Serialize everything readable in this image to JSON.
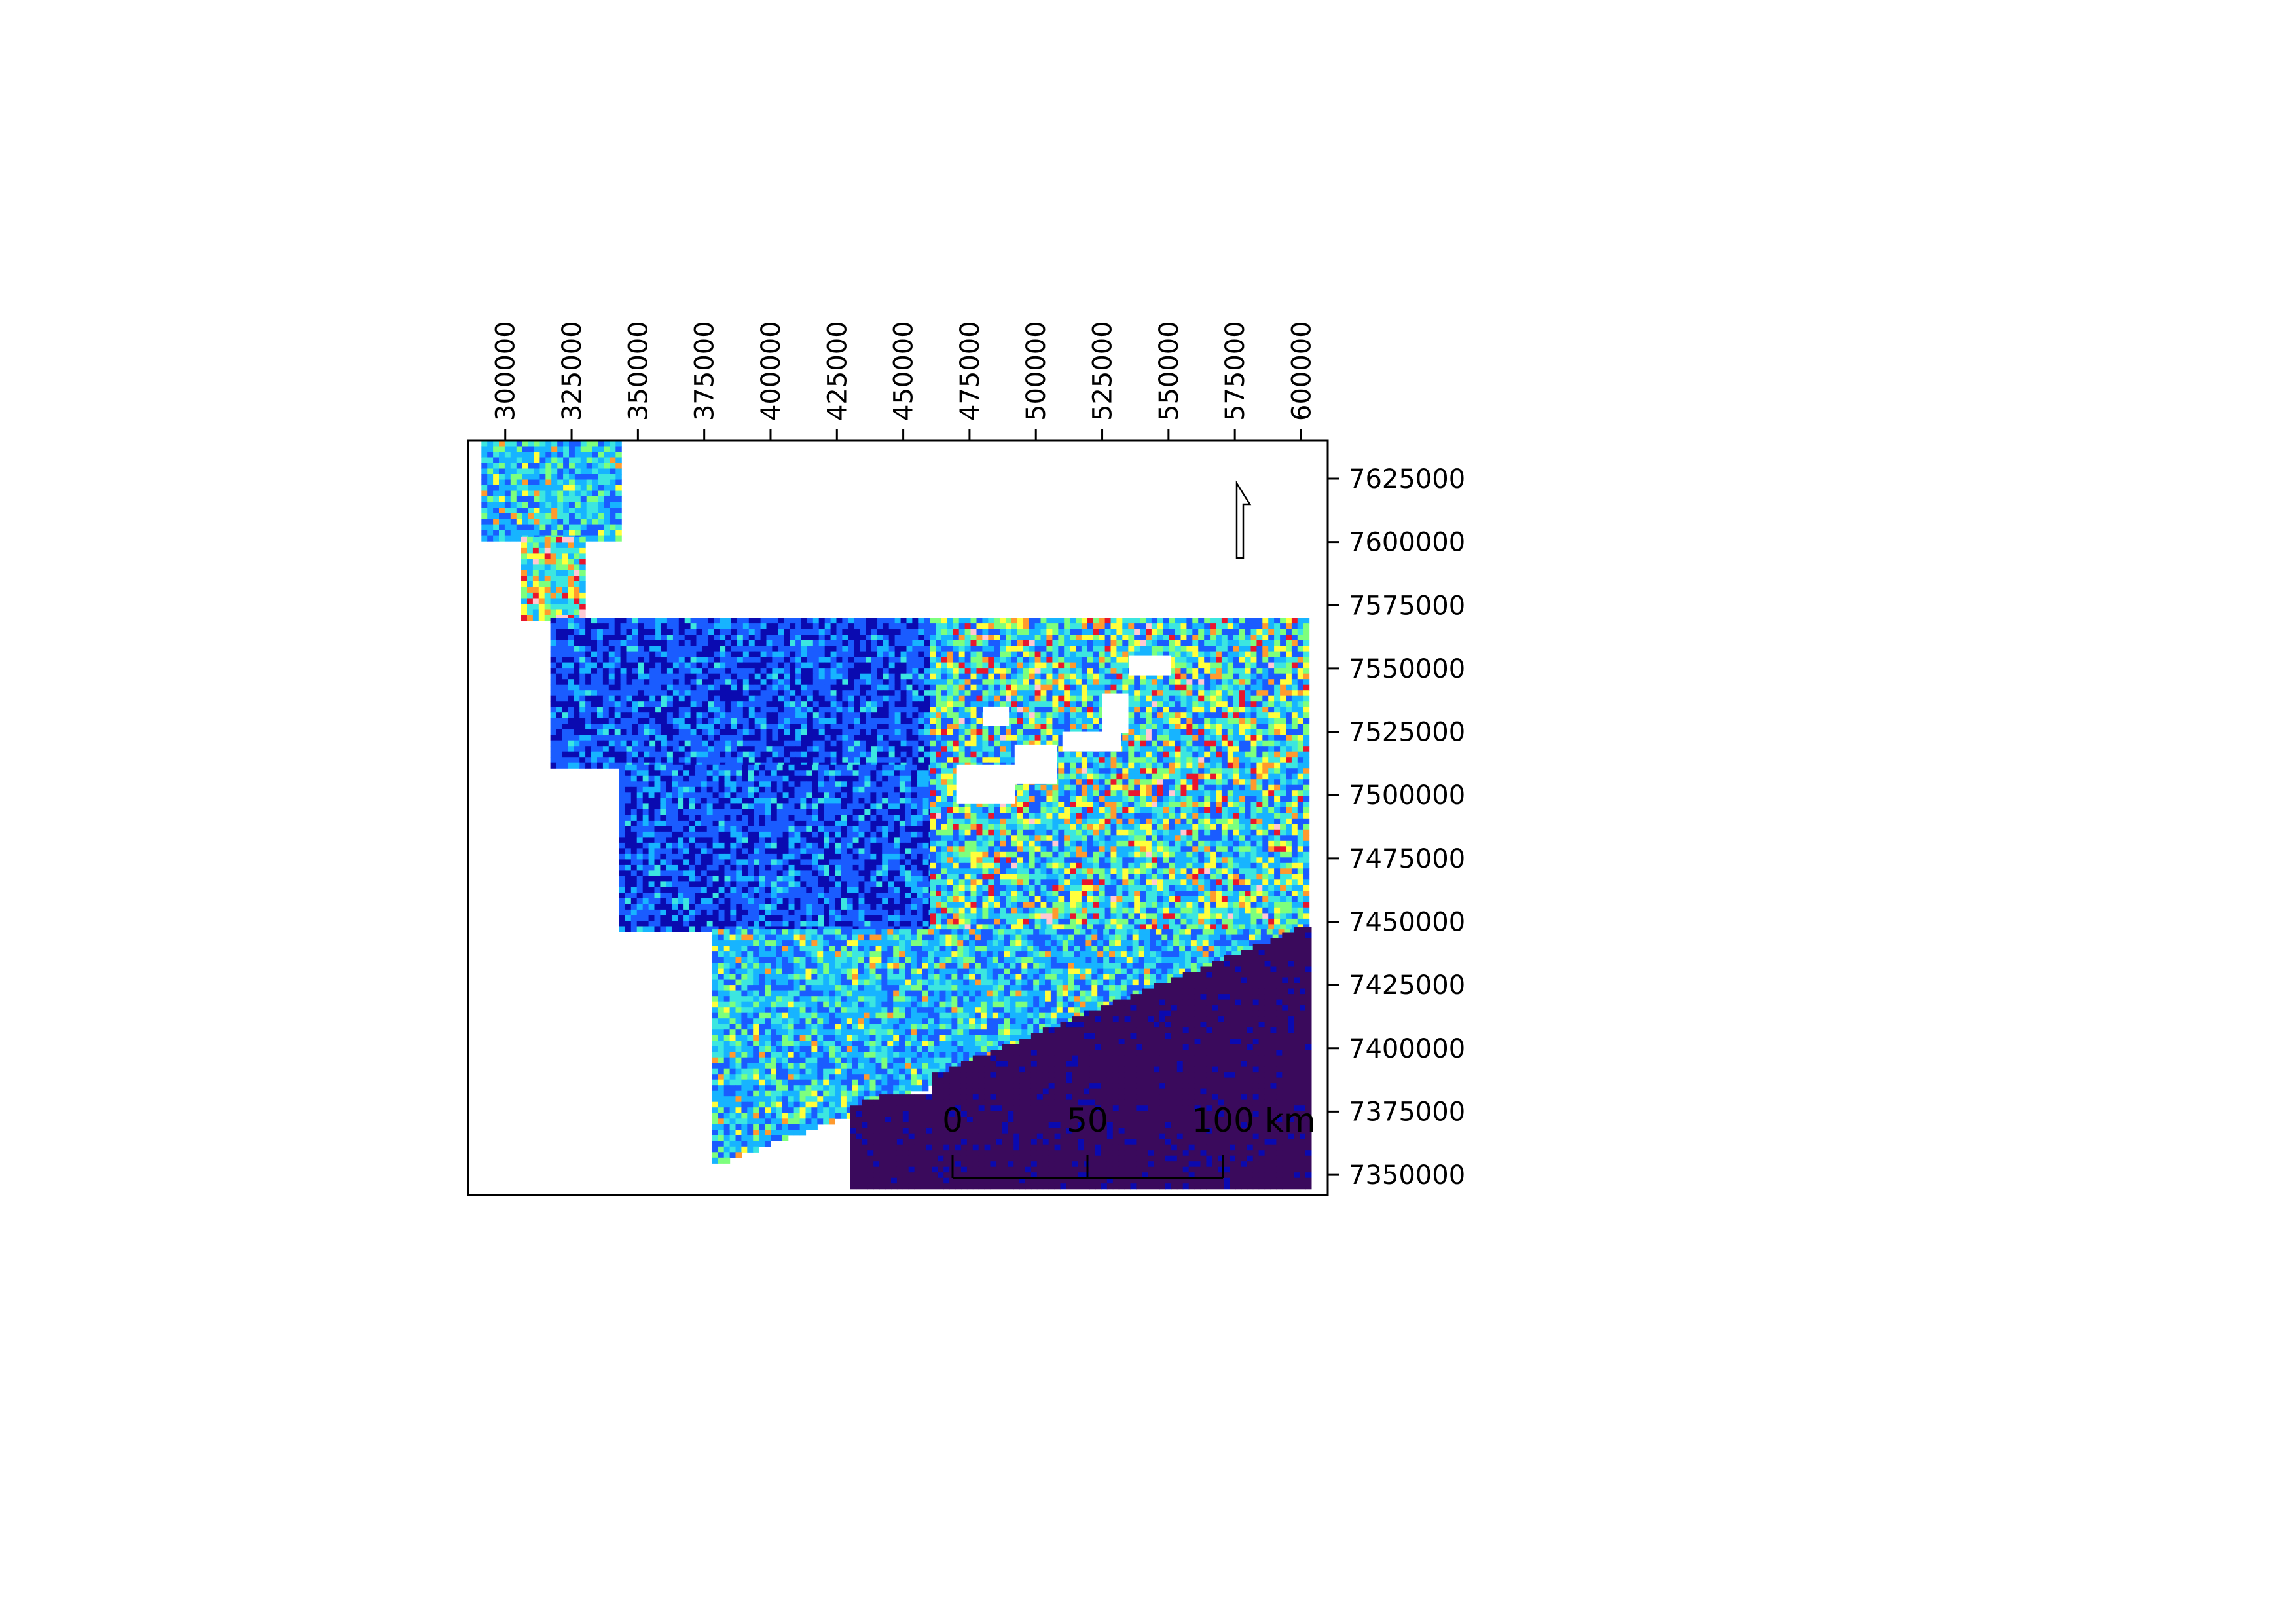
{
  "map": {
    "x_axis": {
      "position": "top",
      "label_rotation": "vertical",
      "ticks": [
        "300000",
        "325000",
        "350000",
        "375000",
        "400000",
        "425000",
        "450000",
        "475000",
        "500000",
        "525000",
        "550000",
        "575000",
        "600000"
      ]
    },
    "y_axis": {
      "position": "right",
      "ticks": [
        "7625000",
        "7600000",
        "7575000",
        "7550000",
        "7525000",
        "7500000",
        "7475000",
        "7450000",
        "7425000",
        "7400000",
        "7375000",
        "7350000"
      ]
    },
    "extent": {
      "x": [
        286000,
        610000
      ],
      "y": [
        7342000,
        7640000
      ]
    },
    "scale_bar": {
      "labels": [
        "0",
        "50",
        "100 km"
      ]
    },
    "north_arrow": {
      "icon": "north-arrow-icon"
    },
    "colormap": [
      "#3a0a5c",
      "#0a0ab0",
      "#1a5cff",
      "#17b4ff",
      "#3ce6e0",
      "#7dff7d",
      "#ffff3c",
      "#ff9a2e",
      "#e8162e",
      "#ffc8d2"
    ],
    "raster_regions": [
      {
        "name": "north-strip",
        "x": [
          291000,
          343000
        ],
        "y": [
          7602000,
          7640000
        ],
        "dominant": "cyan-green"
      },
      {
        "name": "neck",
        "x": [
          306000,
          330000
        ],
        "y": [
          7570000,
          7602000
        ],
        "dominant": "cyan-red"
      },
      {
        "name": "west-block",
        "x": [
          317000,
          460000
        ],
        "y": [
          7512000,
          7570000
        ],
        "dominant": "blue"
      },
      {
        "name": "central-block",
        "x": [
          343000,
          460000
        ],
        "y": [
          7447000,
          7512000
        ],
        "dominant": "blue"
      },
      {
        "name": "east-block",
        "x": [
          460000,
          602000
        ],
        "y": [
          7430000,
          7570000
        ],
        "dominant": "cyan-yellow-red"
      },
      {
        "name": "south-block",
        "x": [
          378000,
          600000
        ],
        "y": [
          7355000,
          7447000
        ],
        "dominant": "cyan-green"
      },
      {
        "name": "dark-margin",
        "x": [
          430000,
          602000
        ],
        "y": [
          7345000,
          7450000
        ],
        "dominant": "dark-purple"
      }
    ]
  }
}
